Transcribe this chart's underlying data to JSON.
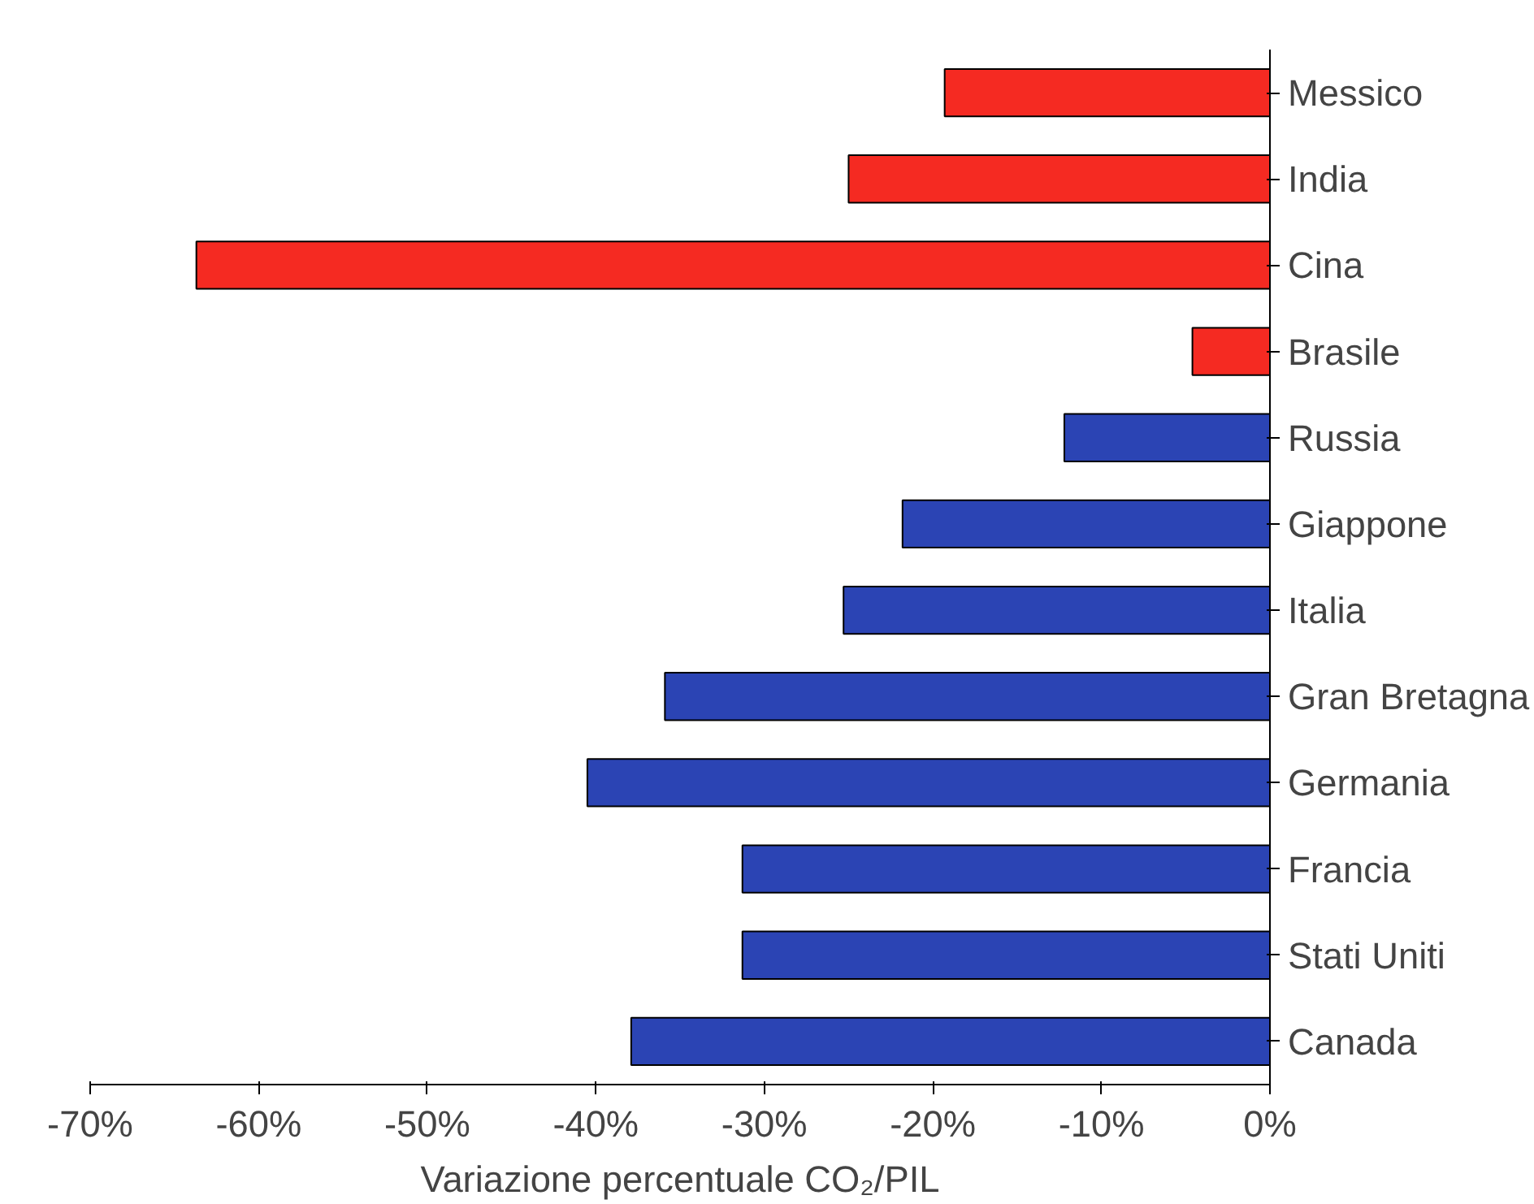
{
  "chart_data": {
    "type": "bar",
    "orientation": "horizontal",
    "xlabel": "Variazione percentuale CO₂/PIL",
    "categories": [
      "Messico",
      "India",
      "Cina",
      "Brasile",
      "Russia",
      "Giappone",
      "Italia",
      "Gran Bretagna",
      "Germania",
      "Francia",
      "Stati Uniti",
      "Canada"
    ],
    "values": [
      -19.3,
      -25.0,
      -63.7,
      -4.6,
      -12.2,
      -21.8,
      -25.3,
      -35.9,
      -40.5,
      -31.3,
      -31.3,
      -37.9
    ],
    "colors": [
      "#f52a22",
      "#f52a22",
      "#f52a22",
      "#f52a22",
      "#2b44b4",
      "#2b44b4",
      "#2b44b4",
      "#2b44b4",
      "#2b44b4",
      "#2b44b4",
      "#2b44b4",
      "#2b44b4"
    ],
    "xlim": [
      -70,
      0
    ],
    "xticks": [
      {
        "value": -70,
        "label": "-70%"
      },
      {
        "value": -60,
        "label": "-60%"
      },
      {
        "value": -50,
        "label": "-50%"
      },
      {
        "value": -40,
        "label": "-40%"
      },
      {
        "value": -30,
        "label": "-30%"
      },
      {
        "value": -20,
        "label": "-20%"
      },
      {
        "value": -10,
        "label": "-10%"
      },
      {
        "value": 0,
        "label": "0%"
      }
    ],
    "grid": false
  }
}
